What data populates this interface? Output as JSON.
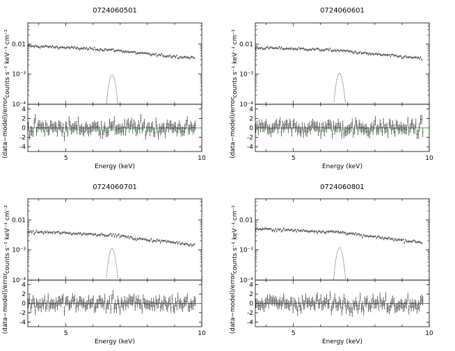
{
  "chart_data": [
    {
      "type": "line",
      "title": "0724060501",
      "xlabel": "Energy (keV)",
      "ylabel_top": "counts s⁻¹ keV⁻¹ cm⁻²",
      "ylabel_bottom": "(data−model)/error",
      "xlim": [
        3.6,
        10
      ],
      "x_ticks": [
        5,
        10
      ],
      "top_panel": {
        "yscale": "log",
        "ylim": [
          0.0001,
          0.05
        ],
        "y_tick_labels": [
          "0.01",
          "10⁻³",
          "10⁻⁴"
        ],
        "series": [
          {
            "values": {
              "x": [
                3.6,
                4.5,
                5.5,
                6.5,
                7.0,
                7.5,
                8.5,
                9.7
              ],
              "y": [
                0.0085,
                0.008,
                0.0072,
                0.0065,
                0.006,
                0.0052,
                0.0042,
                0.0035
              ]
            }
          },
          {
            "values": {
              "center": 6.7,
              "peak": 0.00095,
              "sigma": 0.1
            }
          }
        ]
      },
      "bottom_panel": {
        "ylim": [
          -5,
          5
        ],
        "y_ticks": [
          4,
          2,
          0,
          -2,
          -4
        ],
        "reference_line": 0
      }
    },
    {
      "type": "line",
      "title": "0724060601",
      "xlabel": "Energy (keV)",
      "ylabel_top": "counts s⁻¹ keV⁻¹ cm⁻²",
      "ylabel_bottom": "(data−model)/error",
      "xlim": [
        3.6,
        10
      ],
      "x_ticks": [
        5,
        10
      ],
      "top_panel": {
        "yscale": "log",
        "ylim": [
          0.0001,
          0.05
        ],
        "y_tick_labels": [
          "0.01",
          "10⁻³",
          "10⁻⁴"
        ],
        "series": [
          {
            "values": {
              "x": [
                3.6,
                4.5,
                5.5,
                6.5,
                7.0,
                7.5,
                8.5,
                9.7
              ],
              "y": [
                0.0075,
                0.0072,
                0.0068,
                0.0062,
                0.0058,
                0.005,
                0.0042,
                0.0033
              ]
            }
          },
          {
            "values": {
              "center": 6.7,
              "peak": 0.00105,
              "sigma": 0.1
            }
          }
        ]
      },
      "bottom_panel": {
        "ylim": [
          -5,
          5
        ],
        "y_ticks": [
          4,
          2,
          0,
          -2,
          -4
        ],
        "reference_line": 0
      }
    },
    {
      "type": "line",
      "title": "0724060701",
      "xlabel": "Energy (keV)",
      "ylabel_top": "counts s⁻¹ keV⁻¹ cm⁻²",
      "ylabel_bottom": "(data−model)/error",
      "xlim": [
        3.6,
        10
      ],
      "x_ticks": [
        5,
        10
      ],
      "top_panel": {
        "yscale": "log",
        "ylim": [
          0.0001,
          0.05
        ],
        "y_tick_labels": [
          "0.01",
          "10⁻³",
          "10⁻⁴"
        ],
        "series": [
          {
            "values": {
              "x": [
                3.6,
                4.5,
                5.5,
                6.5,
                7.0,
                7.5,
                8.5,
                9.7
              ],
              "y": [
                0.004,
                0.0038,
                0.0035,
                0.0032,
                0.003,
                0.0024,
                0.002,
                0.0015
              ]
            }
          },
          {
            "values": {
              "center": 6.7,
              "peak": 0.0011,
              "sigma": 0.1
            }
          }
        ]
      },
      "bottom_panel": {
        "ylim": [
          -5,
          5
        ],
        "y_ticks": [
          4,
          2,
          0,
          -2,
          -4
        ],
        "reference_line": 0
      }
    },
    {
      "type": "line",
      "title": "0724060801",
      "xlabel": "Energy (keV)",
      "ylabel_top": "counts s⁻¹ keV⁻¹ cm⁻²",
      "ylabel_bottom": "(data−model)/error",
      "xlim": [
        3.6,
        10
      ],
      "x_ticks": [
        5,
        10
      ],
      "top_panel": {
        "yscale": "log",
        "ylim": [
          0.0001,
          0.05
        ],
        "y_tick_labels": [
          "0.01",
          "10⁻³",
          "10⁻⁴"
        ],
        "series": [
          {
            "values": {
              "x": [
                3.6,
                4.5,
                5.5,
                6.5,
                7.0,
                7.5,
                8.5,
                9.7
              ],
              "y": [
                0.005,
                0.0047,
                0.0043,
                0.004,
                0.0037,
                0.003,
                0.0024,
                0.0018
              ]
            }
          },
          {
            "values": {
              "center": 6.7,
              "peak": 0.0012,
              "sigma": 0.1
            }
          }
        ]
      },
      "bottom_panel": {
        "ylim": [
          -5,
          5
        ],
        "y_ticks": [
          4,
          2,
          0,
          -2,
          -4
        ],
        "reference_line": 0
      }
    }
  ]
}
